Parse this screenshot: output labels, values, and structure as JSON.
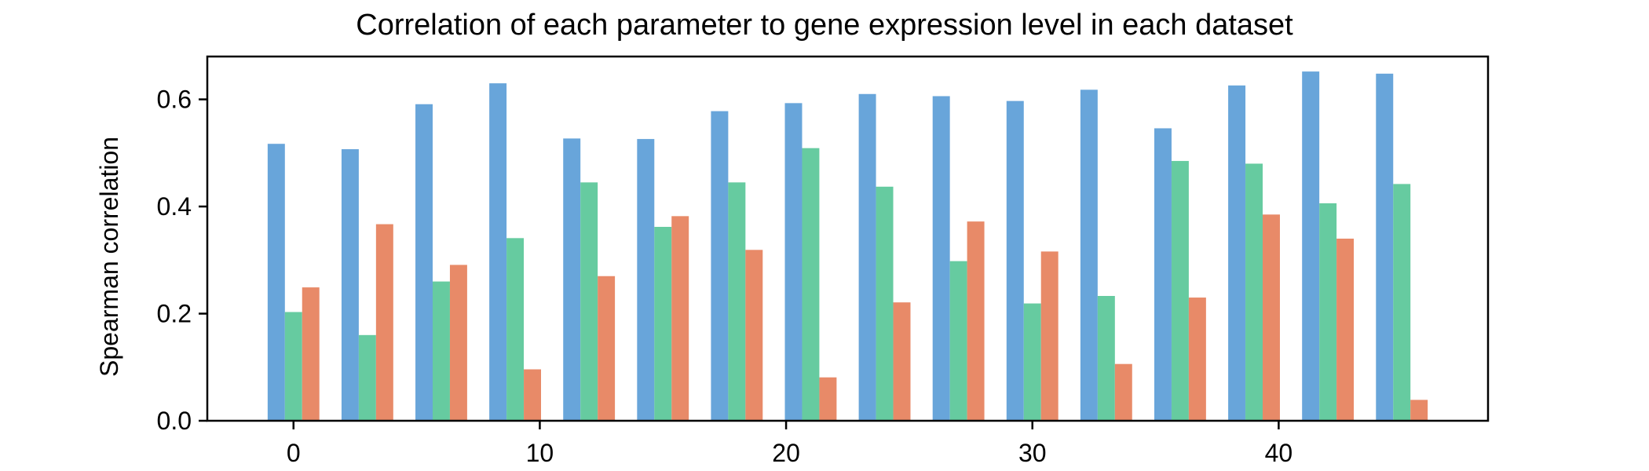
{
  "chart_data": {
    "type": "bar",
    "title": "Correlation of each parameter to gene expression level in each dataset",
    "xlabel": "",
    "ylabel": "Spearman correlation",
    "xlim": [
      -3.5,
      48.5
    ],
    "ylim": [
      0,
      0.68
    ],
    "xticks": [
      0,
      10,
      20,
      30,
      40
    ],
    "yticks": [
      0.0,
      0.2,
      0.4,
      0.6
    ],
    "ytick_labels": [
      "0.0",
      "0.2",
      "0.4",
      "0.6"
    ],
    "grid": false,
    "bar_width": 0.7,
    "x": [
      0,
      3,
      6,
      9,
      12,
      15,
      18,
      21,
      24,
      27,
      30,
      33,
      36,
      39,
      42,
      45
    ],
    "series": [
      {
        "color": "#68a5da",
        "offset": -0.7,
        "values": [
          0.517,
          0.507,
          0.591,
          0.63,
          0.527,
          0.526,
          0.578,
          0.593,
          0.61,
          0.606,
          0.597,
          0.618,
          0.546,
          0.626,
          0.652,
          0.648
        ]
      },
      {
        "color": "#66cba0",
        "offset": 0.0,
        "values": [
          0.203,
          0.16,
          0.26,
          0.341,
          0.445,
          0.362,
          0.445,
          0.509,
          0.437,
          0.298,
          0.219,
          0.233,
          0.485,
          0.48,
          0.406,
          0.442
        ]
      },
      {
        "color": "#e88a68",
        "offset": 0.7,
        "values": [
          0.249,
          0.367,
          0.291,
          0.096,
          0.27,
          0.382,
          0.319,
          0.081,
          0.221,
          0.372,
          0.316,
          0.106,
          0.23,
          0.385,
          0.34,
          0.039
        ]
      }
    ]
  }
}
